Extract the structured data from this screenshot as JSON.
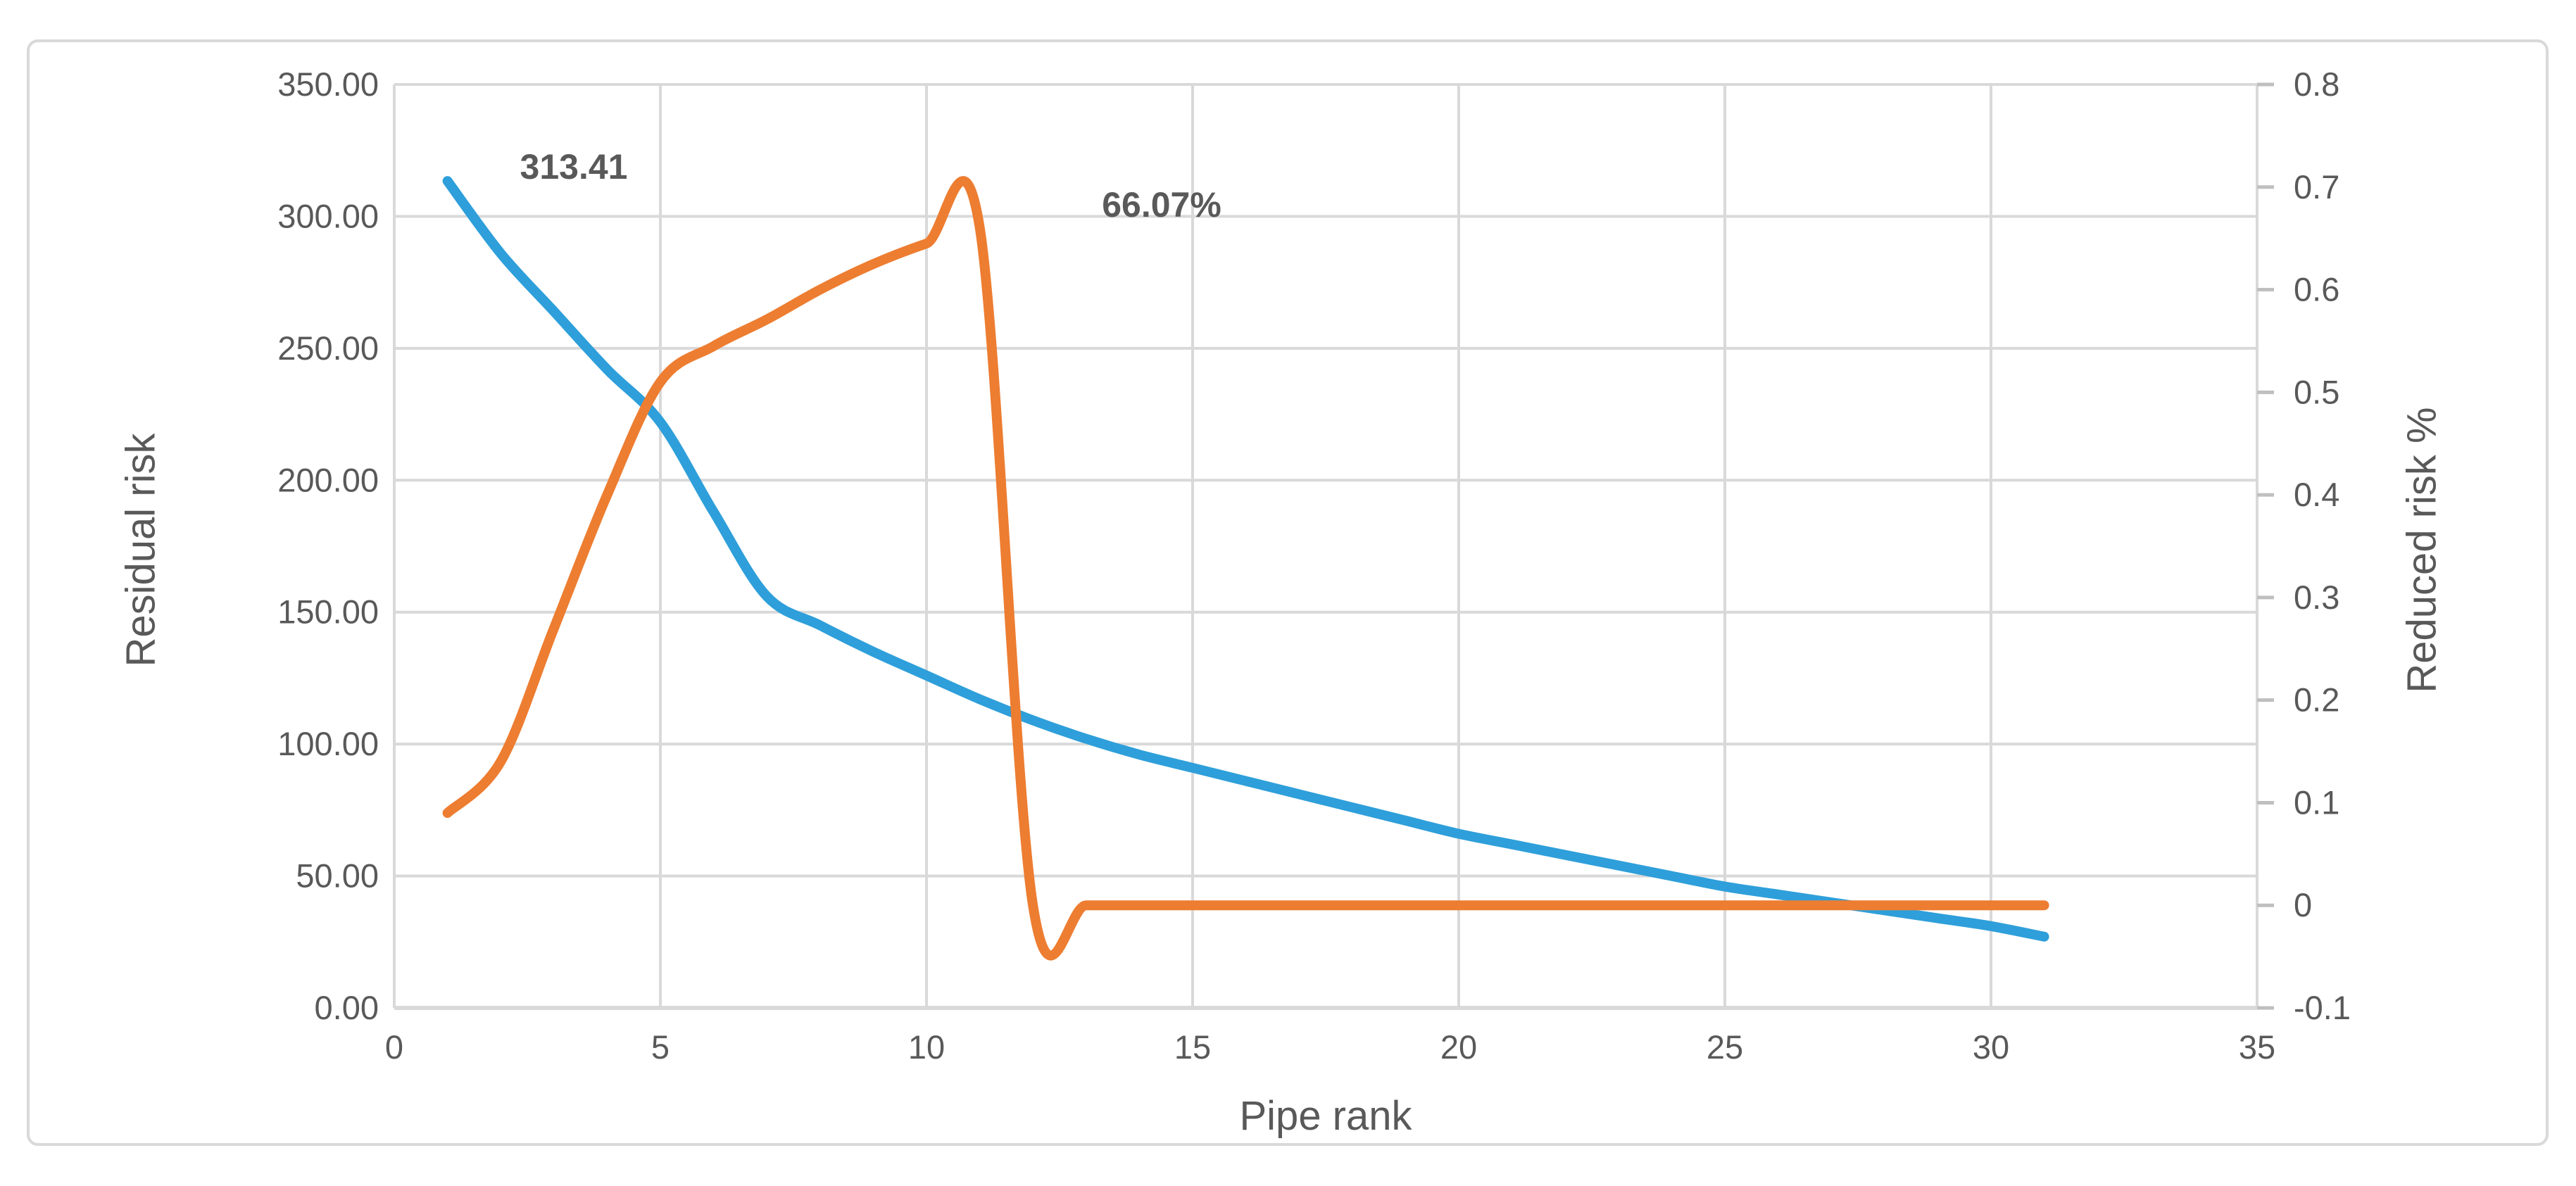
{
  "chart_data": {
    "type": "line",
    "title": "",
    "xlabel": "Pipe rank",
    "ylabel_left": "Residual risk",
    "ylabel_right": "Reduced risk %",
    "xlim": [
      0,
      35
    ],
    "ylim_left": [
      0,
      350
    ],
    "ylim_right": [
      -0.1,
      0.8
    ],
    "grid": true,
    "legend": "none",
    "x_ticks": [
      0,
      5,
      10,
      15,
      20,
      25,
      30,
      35
    ],
    "left_tick_labels": [
      "0.00",
      "50.00",
      "100.00",
      "150.00",
      "200.00",
      "250.00",
      "300.00",
      "350.00"
    ],
    "right_tick_labels": [
      "-0.1",
      "0",
      "0.1",
      "0.2",
      "0.3",
      "0.4",
      "0.5",
      "0.6",
      "0.7",
      "0.8"
    ],
    "x": [
      1,
      2,
      3,
      4,
      5,
      6,
      7,
      8,
      9,
      10,
      11,
      12,
      13,
      14,
      15,
      16,
      17,
      18,
      19,
      20,
      21,
      22,
      23,
      24,
      25,
      26,
      27,
      28,
      29,
      30,
      31
    ],
    "series": [
      {
        "name": "Residual risk",
        "axis": "left",
        "color": "#2E9FDA",
        "values": [
          313.41,
          286,
          264,
          242,
          222,
          188,
          156,
          145,
          135,
          126,
          117,
          109,
          102,
          96,
          91,
          86,
          81,
          76,
          71,
          66,
          62,
          58,
          54,
          50,
          46,
          43,
          40,
          37,
          34,
          31,
          27
        ]
      },
      {
        "name": "Reduced risk %",
        "axis": "right",
        "color": "#ED7D31",
        "values": [
          0.09,
          0.14,
          0.27,
          0.4,
          0.51,
          0.545,
          0.571,
          0.6,
          0.625,
          0.645,
          0.6607,
          0,
          0,
          0,
          0,
          0,
          0,
          0,
          0,
          0,
          0,
          0,
          0,
          0,
          0,
          0,
          0,
          0,
          0,
          0,
          0
        ]
      }
    ],
    "annotations": [
      {
        "text": "313.41",
        "series": "Residual risk",
        "at_x": 1
      },
      {
        "text": "66.07%",
        "series": "Reduced risk %",
        "at_x": 11
      }
    ]
  },
  "colors": {
    "gridline": "#D9D9D9",
    "axis_line": "#C9C9C9",
    "tick_mark": "#BFBFBF",
    "tick_text": "#595959",
    "figure_border": "#D9D9D9",
    "background": "#FFFFFF",
    "series_blue": "#2E9FDA",
    "series_orange": "#ED7D31"
  }
}
